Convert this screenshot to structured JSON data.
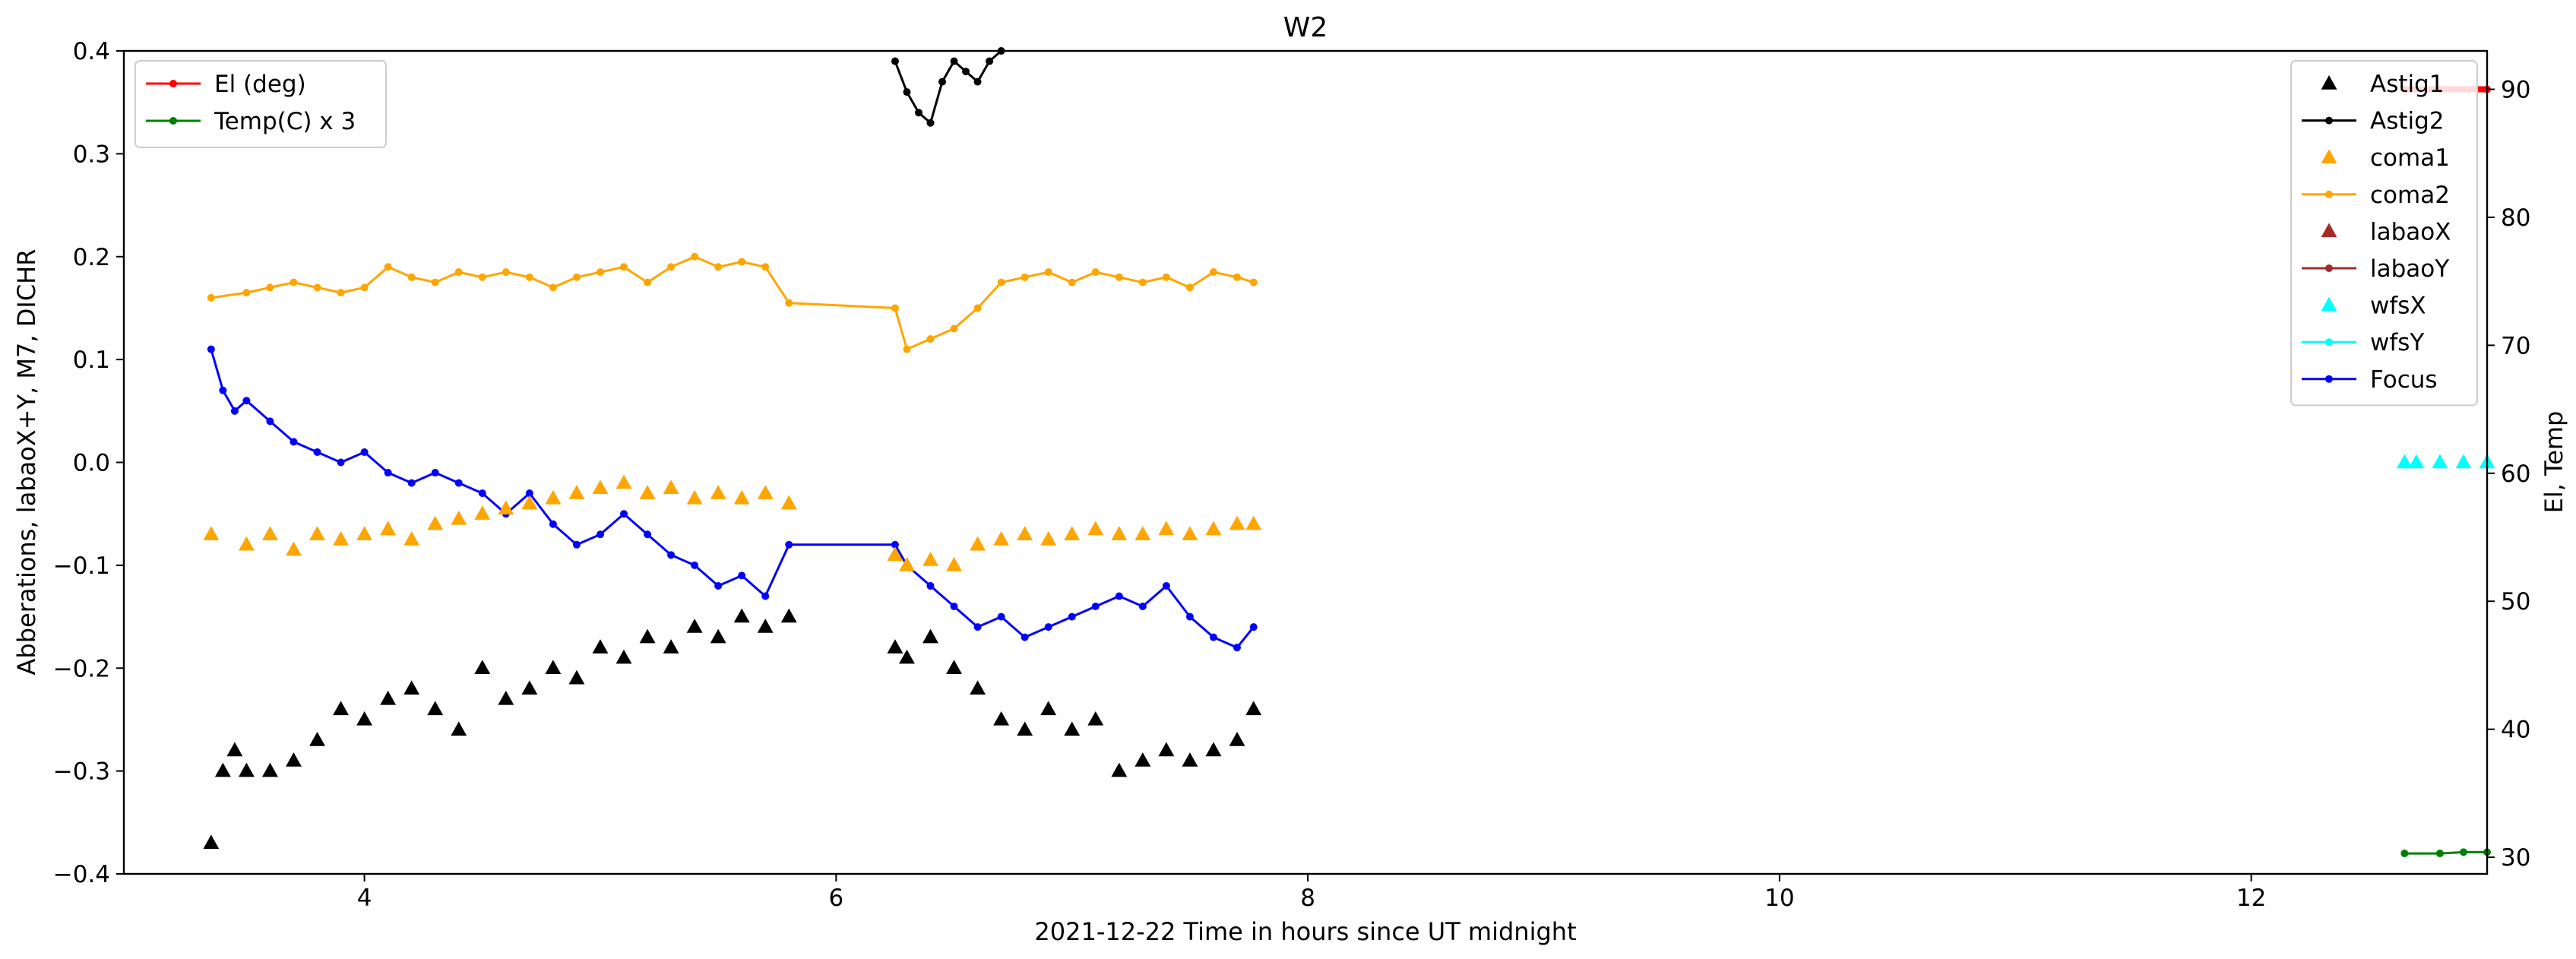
{
  "chart_data": {
    "type": "scatter",
    "title": "W2",
    "xlabel": "2021-12-22  Time in hours since UT midnight",
    "ylabel_left": "Abberations, labaoX+Y, M7, DICHR",
    "ylabel_right": "El, Temp",
    "xlim": [
      2.98,
      13.0
    ],
    "ylim_left": [
      -0.4,
      0.4
    ],
    "ylim_right": [
      28.7,
      93.0
    ],
    "grid": false,
    "x_ticks": [
      4,
      6,
      8,
      10,
      12
    ],
    "y_ticks_left": [
      -0.4,
      -0.3,
      -0.2,
      -0.1,
      0.0,
      0.1,
      0.2,
      0.3,
      0.4
    ],
    "y_ticks_left_labels": [
      "−0.4",
      "−0.3",
      "−0.2",
      "−0.1",
      "0.0",
      "0.1",
      "0.2",
      "0.3",
      "0.4"
    ],
    "y_ticks_right": [
      30,
      40,
      50,
      60,
      70,
      80,
      90
    ],
    "legend_left": {
      "placement": "upper-left",
      "entries": [
        {
          "name": "El (deg)",
          "color": "#ff0000",
          "marker": "line-dot"
        },
        {
          "name": "Temp(C) x 3",
          "color": "#008000",
          "marker": "line-dot"
        }
      ]
    },
    "legend_right": {
      "placement": "upper-right",
      "entries": [
        {
          "name": "Astig1",
          "color": "#000000",
          "marker": "triangle"
        },
        {
          "name": "Astig2",
          "color": "#000000",
          "marker": "line-dot"
        },
        {
          "name": "coma1",
          "color": "#ffa500",
          "marker": "triangle"
        },
        {
          "name": "coma2",
          "color": "#ffa500",
          "marker": "line-dot"
        },
        {
          "name": "labaoX",
          "color": "#a52a2a",
          "marker": "triangle"
        },
        {
          "name": "labaoY",
          "color": "#a52a2a",
          "marker": "line-dot"
        },
        {
          "name": "wfsX",
          "color": "#00ffff",
          "marker": "triangle"
        },
        {
          "name": "wfsY",
          "color": "#00ffff",
          "marker": "line-dot"
        },
        {
          "name": "Focus",
          "color": "#0000ff",
          "marker": "line-dot"
        }
      ]
    },
    "series": [
      {
        "name": "Focus",
        "axis": "left",
        "color": "#0000ff",
        "marker": "line-dot",
        "x": [
          3.35,
          3.4,
          3.45,
          3.5,
          3.6,
          3.7,
          3.8,
          3.9,
          4.0,
          4.1,
          4.2,
          4.3,
          4.4,
          4.5,
          4.6,
          4.7,
          4.8,
          4.9,
          5.0,
          5.1,
          5.2,
          5.3,
          5.4,
          5.5,
          5.6,
          5.7,
          5.8,
          6.25,
          6.3,
          6.4,
          6.5,
          6.6,
          6.7,
          6.8,
          6.9,
          7.0,
          7.1,
          7.2,
          7.3,
          7.4,
          7.5,
          7.6,
          7.7,
          7.77
        ],
        "y": [
          0.11,
          0.07,
          0.05,
          0.06,
          0.04,
          0.02,
          0.01,
          0.0,
          0.01,
          -0.01,
          -0.02,
          -0.01,
          -0.02,
          -0.03,
          -0.05,
          -0.03,
          -0.06,
          -0.08,
          -0.07,
          -0.05,
          -0.07,
          -0.09,
          -0.1,
          -0.12,
          -0.11,
          -0.13,
          -0.08,
          -0.08,
          -0.1,
          -0.12,
          -0.14,
          -0.16,
          -0.15,
          -0.17,
          -0.16,
          -0.15,
          -0.14,
          -0.13,
          -0.14,
          -0.12,
          -0.15,
          -0.17,
          -0.18,
          -0.16
        ]
      },
      {
        "name": "coma2",
        "axis": "left",
        "color": "#ffa500",
        "marker": "line-dot",
        "x": [
          3.35,
          3.5,
          3.6,
          3.7,
          3.8,
          3.9,
          4.0,
          4.1,
          4.2,
          4.3,
          4.4,
          4.5,
          4.6,
          4.7,
          4.8,
          4.9,
          5.0,
          5.1,
          5.2,
          5.3,
          5.4,
          5.5,
          5.6,
          5.7,
          5.8,
          6.25,
          6.3,
          6.4,
          6.5,
          6.6,
          6.7,
          6.8,
          6.9,
          7.0,
          7.1,
          7.2,
          7.3,
          7.4,
          7.5,
          7.6,
          7.7,
          7.77
        ],
        "y": [
          0.16,
          0.165,
          0.17,
          0.175,
          0.17,
          0.165,
          0.17,
          0.19,
          0.18,
          0.175,
          0.185,
          0.18,
          0.185,
          0.18,
          0.17,
          0.18,
          0.185,
          0.19,
          0.175,
          0.19,
          0.2,
          0.19,
          0.195,
          0.19,
          0.155,
          0.15,
          0.11,
          0.12,
          0.13,
          0.15,
          0.175,
          0.18,
          0.185,
          0.175,
          0.185,
          0.18,
          0.175,
          0.18,
          0.17,
          0.185,
          0.18,
          0.175
        ]
      },
      {
        "name": "coma1",
        "axis": "left",
        "color": "#ffa500",
        "marker": "triangle",
        "x": [
          3.35,
          3.5,
          3.6,
          3.7,
          3.8,
          3.9,
          4.0,
          4.1,
          4.2,
          4.3,
          4.4,
          4.5,
          4.6,
          4.7,
          4.8,
          4.9,
          5.0,
          5.1,
          5.2,
          5.3,
          5.4,
          5.5,
          5.6,
          5.7,
          5.8,
          6.25,
          6.3,
          6.4,
          6.5,
          6.6,
          6.7,
          6.8,
          6.9,
          7.0,
          7.1,
          7.2,
          7.3,
          7.4,
          7.5,
          7.6,
          7.7,
          7.77
        ],
        "y": [
          -0.07,
          -0.08,
          -0.07,
          -0.085,
          -0.07,
          -0.075,
          -0.07,
          -0.065,
          -0.075,
          -0.06,
          -0.055,
          -0.05,
          -0.045,
          -0.04,
          -0.035,
          -0.03,
          -0.025,
          -0.02,
          -0.03,
          -0.025,
          -0.035,
          -0.03,
          -0.035,
          -0.03,
          -0.04,
          -0.09,
          -0.1,
          -0.095,
          -0.1,
          -0.08,
          -0.075,
          -0.07,
          -0.075,
          -0.07,
          -0.065,
          -0.07,
          -0.07,
          -0.065,
          -0.07,
          -0.065,
          -0.06,
          -0.06
        ]
      },
      {
        "name": "Astig1",
        "axis": "left",
        "color": "#000000",
        "marker": "triangle",
        "x": [
          3.35,
          3.4,
          3.45,
          3.5,
          3.6,
          3.7,
          3.8,
          3.9,
          4.0,
          4.1,
          4.2,
          4.3,
          4.4,
          4.5,
          4.6,
          4.7,
          4.8,
          4.9,
          5.0,
          5.1,
          5.2,
          5.3,
          5.4,
          5.5,
          5.6,
          5.7,
          5.8,
          6.25,
          6.3,
          6.4,
          6.5,
          6.6,
          6.7,
          6.8,
          6.9,
          7.0,
          7.1,
          7.2,
          7.3,
          7.4,
          7.5,
          7.6,
          7.7,
          7.77
        ],
        "y": [
          -0.37,
          -0.3,
          -0.28,
          -0.3,
          -0.3,
          -0.29,
          -0.27,
          -0.24,
          -0.25,
          -0.23,
          -0.22,
          -0.24,
          -0.26,
          -0.2,
          -0.23,
          -0.22,
          -0.2,
          -0.21,
          -0.18,
          -0.19,
          -0.17,
          -0.18,
          -0.16,
          -0.17,
          -0.15,
          -0.16,
          -0.15,
          -0.18,
          -0.19,
          -0.17,
          -0.2,
          -0.22,
          -0.25,
          -0.26,
          -0.24,
          -0.26,
          -0.25,
          -0.3,
          -0.29,
          -0.28,
          -0.29,
          -0.28,
          -0.27,
          -0.24
        ]
      },
      {
        "name": "Astig2",
        "axis": "left",
        "color": "#000000",
        "marker": "line-dot",
        "x": [
          6.25,
          6.3,
          6.35,
          6.4,
          6.45,
          6.5,
          6.55,
          6.6,
          6.65,
          6.7
        ],
        "y": [
          0.39,
          0.36,
          0.34,
          0.33,
          0.37,
          0.39,
          0.38,
          0.37,
          0.39,
          0.4
        ]
      },
      {
        "name": "El (deg)",
        "axis": "right",
        "color": "#ff0000",
        "marker": "line-dot",
        "x": [
          12.65,
          12.8,
          13.0
        ],
        "y": [
          90.0,
          90.0,
          90.0
        ]
      },
      {
        "name": "Temp(C) x 3",
        "axis": "right",
        "color": "#008000",
        "marker": "line-dot",
        "x": [
          12.65,
          12.8,
          12.9,
          13.0
        ],
        "y": [
          30.3,
          30.3,
          30.4,
          30.4
        ]
      },
      {
        "name": "wfsX",
        "axis": "left",
        "color": "#00ffff",
        "marker": "triangle",
        "x": [
          12.65,
          12.7,
          12.8,
          12.9,
          13.0
        ],
        "y": [
          -0.0,
          0.0,
          0.0,
          0.0,
          0.0
        ]
      }
    ]
  }
}
